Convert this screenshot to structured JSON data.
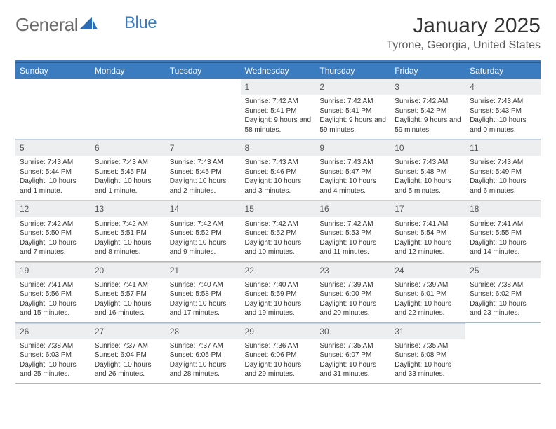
{
  "logo": {
    "text1": "General",
    "text2": "Blue",
    "text1_color": "#6a6a6a",
    "text2_color": "#3b7bbf",
    "icon_color": "#2a6db5"
  },
  "header": {
    "month": "January 2025",
    "location": "Tyrone, Georgia, United States"
  },
  "colors": {
    "header_bg": "#3b7bbf",
    "header_text": "#ffffff",
    "daynum_bg": "#eceeef",
    "border": "#2a5a8a",
    "row_border": "#a8b8c8"
  },
  "dayNames": [
    "Sunday",
    "Monday",
    "Tuesday",
    "Wednesday",
    "Thursday",
    "Friday",
    "Saturday"
  ],
  "weeks": [
    [
      null,
      null,
      null,
      {
        "n": "1",
        "sr": "7:42 AM",
        "ss": "5:41 PM",
        "dl": "9 hours and 58 minutes."
      },
      {
        "n": "2",
        "sr": "7:42 AM",
        "ss": "5:41 PM",
        "dl": "9 hours and 59 minutes."
      },
      {
        "n": "3",
        "sr": "7:42 AM",
        "ss": "5:42 PM",
        "dl": "9 hours and 59 minutes."
      },
      {
        "n": "4",
        "sr": "7:43 AM",
        "ss": "5:43 PM",
        "dl": "10 hours and 0 minutes."
      }
    ],
    [
      {
        "n": "5",
        "sr": "7:43 AM",
        "ss": "5:44 PM",
        "dl": "10 hours and 1 minute."
      },
      {
        "n": "6",
        "sr": "7:43 AM",
        "ss": "5:45 PM",
        "dl": "10 hours and 1 minute."
      },
      {
        "n": "7",
        "sr": "7:43 AM",
        "ss": "5:45 PM",
        "dl": "10 hours and 2 minutes."
      },
      {
        "n": "8",
        "sr": "7:43 AM",
        "ss": "5:46 PM",
        "dl": "10 hours and 3 minutes."
      },
      {
        "n": "9",
        "sr": "7:43 AM",
        "ss": "5:47 PM",
        "dl": "10 hours and 4 minutes."
      },
      {
        "n": "10",
        "sr": "7:43 AM",
        "ss": "5:48 PM",
        "dl": "10 hours and 5 minutes."
      },
      {
        "n": "11",
        "sr": "7:43 AM",
        "ss": "5:49 PM",
        "dl": "10 hours and 6 minutes."
      }
    ],
    [
      {
        "n": "12",
        "sr": "7:42 AM",
        "ss": "5:50 PM",
        "dl": "10 hours and 7 minutes."
      },
      {
        "n": "13",
        "sr": "7:42 AM",
        "ss": "5:51 PM",
        "dl": "10 hours and 8 minutes."
      },
      {
        "n": "14",
        "sr": "7:42 AM",
        "ss": "5:52 PM",
        "dl": "10 hours and 9 minutes."
      },
      {
        "n": "15",
        "sr": "7:42 AM",
        "ss": "5:52 PM",
        "dl": "10 hours and 10 minutes."
      },
      {
        "n": "16",
        "sr": "7:42 AM",
        "ss": "5:53 PM",
        "dl": "10 hours and 11 minutes."
      },
      {
        "n": "17",
        "sr": "7:41 AM",
        "ss": "5:54 PM",
        "dl": "10 hours and 12 minutes."
      },
      {
        "n": "18",
        "sr": "7:41 AM",
        "ss": "5:55 PM",
        "dl": "10 hours and 14 minutes."
      }
    ],
    [
      {
        "n": "19",
        "sr": "7:41 AM",
        "ss": "5:56 PM",
        "dl": "10 hours and 15 minutes."
      },
      {
        "n": "20",
        "sr": "7:41 AM",
        "ss": "5:57 PM",
        "dl": "10 hours and 16 minutes."
      },
      {
        "n": "21",
        "sr": "7:40 AM",
        "ss": "5:58 PM",
        "dl": "10 hours and 17 minutes."
      },
      {
        "n": "22",
        "sr": "7:40 AM",
        "ss": "5:59 PM",
        "dl": "10 hours and 19 minutes."
      },
      {
        "n": "23",
        "sr": "7:39 AM",
        "ss": "6:00 PM",
        "dl": "10 hours and 20 minutes."
      },
      {
        "n": "24",
        "sr": "7:39 AM",
        "ss": "6:01 PM",
        "dl": "10 hours and 22 minutes."
      },
      {
        "n": "25",
        "sr": "7:38 AM",
        "ss": "6:02 PM",
        "dl": "10 hours and 23 minutes."
      }
    ],
    [
      {
        "n": "26",
        "sr": "7:38 AM",
        "ss": "6:03 PM",
        "dl": "10 hours and 25 minutes."
      },
      {
        "n": "27",
        "sr": "7:37 AM",
        "ss": "6:04 PM",
        "dl": "10 hours and 26 minutes."
      },
      {
        "n": "28",
        "sr": "7:37 AM",
        "ss": "6:05 PM",
        "dl": "10 hours and 28 minutes."
      },
      {
        "n": "29",
        "sr": "7:36 AM",
        "ss": "6:06 PM",
        "dl": "10 hours and 29 minutes."
      },
      {
        "n": "30",
        "sr": "7:35 AM",
        "ss": "6:07 PM",
        "dl": "10 hours and 31 minutes."
      },
      {
        "n": "31",
        "sr": "7:35 AM",
        "ss": "6:08 PM",
        "dl": "10 hours and 33 minutes."
      },
      null
    ]
  ],
  "labels": {
    "sunrise": "Sunrise:",
    "sunset": "Sunset:",
    "daylight": "Daylight:"
  }
}
